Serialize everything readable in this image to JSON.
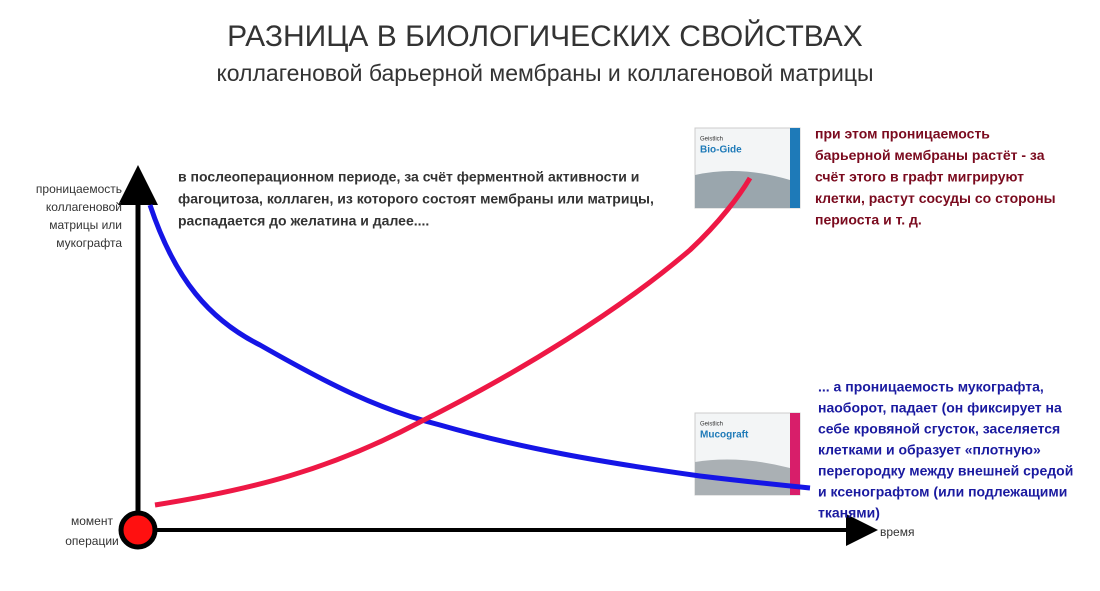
{
  "header": {
    "title": "РАЗНИЦА В БИОЛОГИЧЕСКИХ СВОЙСТВАХ",
    "subtitle": "коллагеновой барьерной мембраны и коллагеновой матрицы"
  },
  "axes": {
    "y_label": [
      "проницаемость",
      "коллагеновой",
      "матрицы или",
      "мукографта"
    ],
    "x_label": "время",
    "origin_label": [
      "момент",
      "операции"
    ]
  },
  "annotations": {
    "general": [
      "в послеоперационном периоде, за счёт ферментной активности и",
      "фагоцитоза, коллаген, из которого состоят мембраны или матрицы,",
      "распадается до желатина и далее...."
    ],
    "membrane": [
      "при этом проницаемость",
      "барьерной мембраны растёт - за",
      "счёт этого в графт мигрируют",
      "клетки, растут сосуды со стороны",
      "периоста и т. д."
    ],
    "mucograft": [
      "... а проницаемость мукографта,",
      "наоборот, падает (он фиксирует на",
      "себе кровяной сгусток, заселяется",
      "клетками и образует «плотную»",
      "перегородку между внешней средой",
      "и ксенографтом (или подлежащими",
      "тканями)"
    ]
  },
  "products": [
    {
      "brand": "Geistlich",
      "name": "Bio-Gide"
    },
    {
      "brand": "Geistlich",
      "name": "Mucograft"
    }
  ]
}
